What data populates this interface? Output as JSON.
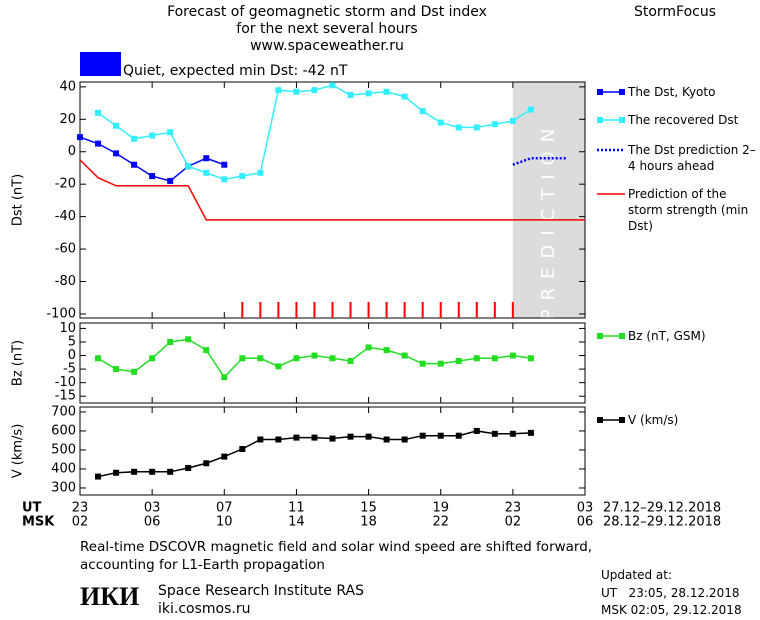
{
  "header": {
    "title_lines": [
      "Forecast of geomagnetic storm and Dst index",
      "for the next several hours",
      "www.spaceweather.ru"
    ],
    "brand": "StormFocus"
  },
  "status": {
    "label": "Quiet, expected min Dst: -42 nT",
    "color": "#0000ff"
  },
  "time_axis": {
    "xlim": [
      0,
      28
    ],
    "ut_label": "UT",
    "ut_ticks": [
      {
        "value": 0,
        "label": "23"
      },
      {
        "value": 4,
        "label": "03"
      },
      {
        "value": 8,
        "label": "07"
      },
      {
        "value": 12,
        "label": "11"
      },
      {
        "value": 16,
        "label": "15"
      },
      {
        "value": 20,
        "label": "19"
      },
      {
        "value": 24,
        "label": "23"
      },
      {
        "value": 28,
        "label": "03"
      }
    ],
    "ut_range": "27.12–29.12.2018",
    "msk_label": "MSK",
    "msk_ticks": [
      {
        "value": 0,
        "label": "02"
      },
      {
        "value": 4,
        "label": "06"
      },
      {
        "value": 8,
        "label": "10"
      },
      {
        "value": 12,
        "label": "14"
      },
      {
        "value": 16,
        "label": "18"
      },
      {
        "value": 20,
        "label": "22"
      },
      {
        "value": 24,
        "label": "02"
      },
      {
        "value": 28,
        "label": "06"
      }
    ],
    "msk_range": "28.12–29.12.2018"
  },
  "chart_data": [
    {
      "type": "line",
      "y_label": "Dst (nT)",
      "ylim": [
        -102.5,
        43
      ],
      "yticks": [
        40,
        20,
        0,
        -20,
        -40,
        -60,
        -80,
        -100
      ],
      "prediction_region": [
        24,
        28
      ],
      "prediction_label": "PREDICTION",
      "prediction_color": "#dcdcdc",
      "forecast_marks": [
        9,
        10,
        11,
        12,
        13,
        14,
        15,
        16,
        17,
        18,
        19,
        20,
        21,
        22,
        23,
        24
      ],
      "forecast_mark_color": "#ff0000",
      "series": [
        {
          "name": "The Dst, Kyoto",
          "color": "#0000ff",
          "marker": "square",
          "dash": "solid",
          "x": [
            0,
            1,
            2,
            3,
            4,
            5,
            6,
            7,
            8
          ],
          "values": [
            9,
            5,
            -1,
            -8,
            -15,
            -18,
            -9,
            -4,
            -8
          ]
        },
        {
          "name": "The recovered Dst",
          "color": "#33eeff",
          "marker": "square",
          "dash": "solid",
          "x": [
            1,
            2,
            3,
            4,
            5,
            6,
            7,
            8,
            9,
            10,
            11,
            12,
            13,
            14,
            15,
            16,
            17,
            18,
            19,
            20,
            21,
            22,
            23,
            24,
            25
          ],
          "values": [
            24,
            16,
            8,
            10,
            12,
            -9,
            -13,
            -17,
            -15,
            -13,
            38,
            37,
            38,
            41,
            35,
            36,
            37,
            34,
            25,
            18,
            15,
            15,
            17,
            19,
            26
          ]
        },
        {
          "name": "The Dst prediction 2–4 hours ahead",
          "color": "#0000ff",
          "marker": "none",
          "dash": "dotted",
          "x": [
            24,
            25,
            26,
            27
          ],
          "values": [
            -8,
            -4,
            -4,
            -4
          ]
        },
        {
          "name": "Prediction of the storm strength (min Dst)",
          "color": "#ff0000",
          "marker": "none",
          "dash": "solid",
          "x": [
            0,
            1,
            2,
            6,
            7,
            28
          ],
          "values": [
            -5,
            -16,
            -21,
            -21,
            -42,
            -42
          ]
        }
      ]
    },
    {
      "type": "line",
      "y_label": "Bz (nT)",
      "ylim": [
        -17.5,
        12
      ],
      "yticks": [
        10,
        5,
        0,
        -5,
        -10,
        -15
      ],
      "series": [
        {
          "name": "Bz (nT, GSM)",
          "color": "#22dd22",
          "marker": "square",
          "dash": "solid",
          "x": [
            1,
            2,
            3,
            4,
            5,
            6,
            7,
            8,
            9,
            10,
            11,
            12,
            13,
            14,
            15,
            16,
            17,
            18,
            19,
            20,
            21,
            22,
            23,
            24,
            25
          ],
          "values": [
            -1,
            -5,
            -6,
            -1,
            5,
            6,
            2,
            -8,
            -1,
            -1,
            -4,
            -1,
            0,
            -1,
            -2,
            3,
            2,
            0,
            -3,
            -3,
            -2,
            -1,
            -1,
            0,
            -1
          ]
        }
      ]
    },
    {
      "type": "line",
      "y_label": "V (km/s)",
      "ylim": [
        263,
        726
      ],
      "yticks": [
        700,
        600,
        500,
        400,
        300
      ],
      "series": [
        {
          "name": "V (km/s)",
          "color": "#000000",
          "marker": "square",
          "dash": "solid",
          "x": [
            1,
            2,
            3,
            4,
            5,
            6,
            7,
            8,
            9,
            10,
            11,
            12,
            13,
            14,
            15,
            16,
            17,
            18,
            19,
            20,
            21,
            22,
            23,
            24,
            25
          ],
          "values": [
            360,
            380,
            385,
            385,
            385,
            405,
            430,
            465,
            505,
            555,
            555,
            565,
            565,
            560,
            570,
            570,
            555,
            555,
            575,
            575,
            575,
            600,
            585,
            585,
            590
          ]
        }
      ]
    }
  ],
  "footer": {
    "note": "Real-time DSCOVR magnetic field and solar wind speed are shifted forward, accounting for L1-Earth propagation",
    "logo": "ИКИ",
    "institute": "Space Research Institute RAS",
    "site": "iki.cosmos.ru",
    "updated_label": "Updated at:",
    "updated_ut": "UT   23:05, 28.12.2018",
    "updated_msk": "MSK 02:05, 29.12.2018"
  }
}
